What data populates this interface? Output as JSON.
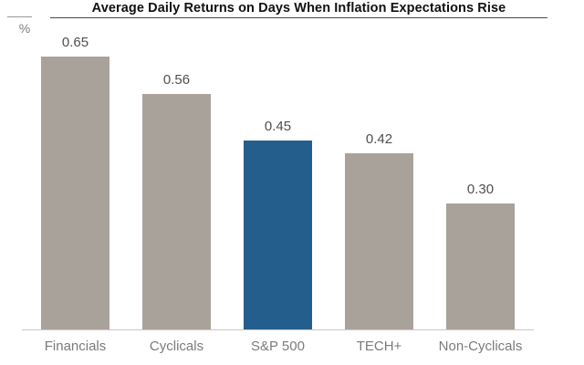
{
  "header": {
    "title": "Average Daily Returns on Days When Inflation Expectations Rise",
    "y_axis_unit": "%"
  },
  "chart_data": {
    "type": "bar",
    "title": "Average Daily Returns on Days When Inflation Expectations Rise",
    "ylabel": "%",
    "xlabel": "",
    "categories": [
      "Financials",
      "Cyclicals",
      "S&P 500",
      "TECH+",
      "Non-Cyclicals"
    ],
    "values": [
      0.65,
      0.56,
      0.45,
      0.42,
      0.3
    ],
    "value_labels": [
      "0.65",
      "0.56",
      "0.45",
      "0.42",
      "0.30"
    ],
    "highlight_index": 2,
    "highlight_category": "S&P 500",
    "ylim": [
      0,
      0.74
    ],
    "grid": false,
    "legend": false,
    "colors": {
      "bar": "#a9a29b",
      "highlight": "#245e8c",
      "value_label": "#4f4f4f",
      "category_label": "#7b7b7b",
      "baseline": "#c9c9c9",
      "title": "#111111",
      "title_rule": "#4a4a4a",
      "unit_rule": "#999999",
      "axis_unit": "#7b7b7b"
    }
  }
}
